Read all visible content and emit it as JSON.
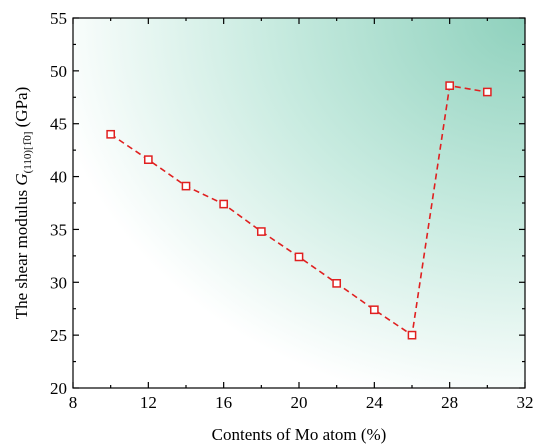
{
  "chart_data": {
    "type": "line",
    "xlabel": "Contents of Mo atom (%)",
    "ylabel": {
      "prefix": "The shear modulus ",
      "symbol": "G",
      "subscript": "(110)[1̅0]",
      "suffix": " (GPa)"
    },
    "xlim": [
      8,
      32
    ],
    "ylim": [
      20,
      55
    ],
    "xticks": [
      8,
      12,
      16,
      20,
      24,
      28,
      32
    ],
    "yticks": [
      20,
      25,
      30,
      35,
      40,
      45,
      50,
      55
    ],
    "grid": false,
    "background_gradient": [
      "#ffffff",
      "#9fd8c6"
    ],
    "series": [
      {
        "color": "#e02020",
        "marker": "open-square",
        "line_style": "dashed",
        "x": [
          10,
          12,
          14,
          16,
          18,
          20,
          22,
          24,
          26,
          28,
          30
        ],
        "y": [
          44.0,
          41.6,
          39.1,
          37.4,
          34.8,
          32.4,
          29.9,
          27.4,
          25.0,
          48.6,
          48.0
        ]
      }
    ]
  }
}
